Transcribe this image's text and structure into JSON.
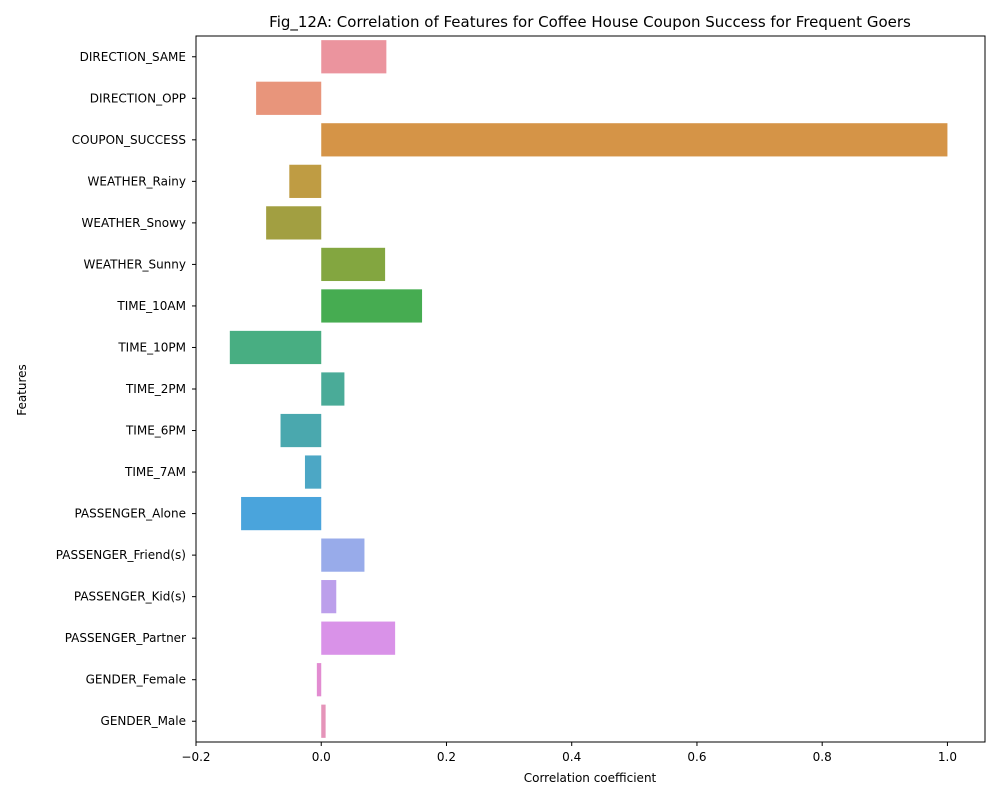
{
  "chart_data": {
    "type": "bar",
    "orientation": "horizontal",
    "title": "Fig_12A: Correlation of Features for Coffee House Coupon Success for Frequent Goers",
    "xlabel": "Correlation coefficient",
    "ylabel": "Features",
    "xlim": [
      -0.2,
      1.06
    ],
    "xticks": [
      -0.2,
      0.0,
      0.2,
      0.4,
      0.6,
      0.8,
      1.0
    ],
    "xtick_labels": [
      "−0.2",
      "0.0",
      "0.2",
      "0.4",
      "0.6",
      "0.8",
      "1.0"
    ],
    "grid": false,
    "categories": [
      "DIRECTION_SAME",
      "DIRECTION_OPP",
      "COUPON_SUCCESS",
      "WEATHER_Rainy",
      "WEATHER_Snowy",
      "WEATHER_Sunny",
      "TIME_10AM",
      "TIME_10PM",
      "TIME_2PM",
      "TIME_6PM",
      "TIME_7AM",
      "PASSENGER_Alone",
      "PASSENGER_Friend(s)",
      "PASSENGER_Kid(s)",
      "PASSENGER_Partner",
      "GENDER_Female",
      "GENDER_Male"
    ],
    "values": [
      0.104,
      -0.104,
      1.0,
      -0.051,
      -0.088,
      0.102,
      0.161,
      -0.146,
      0.037,
      -0.065,
      -0.026,
      -0.128,
      0.069,
      0.024,
      0.118,
      -0.007,
      0.007
    ],
    "colors": [
      "#eb949e",
      "#e8957b",
      "#d59447",
      "#bf9c43",
      "#a29f41",
      "#83a640",
      "#46ac51",
      "#48ae82",
      "#4aab98",
      "#4aa8ae",
      "#4ca7c5",
      "#4aa4dc",
      "#98abea",
      "#bc9feb",
      "#d992e8",
      "#e28cd1",
      "#e594b9"
    ]
  }
}
